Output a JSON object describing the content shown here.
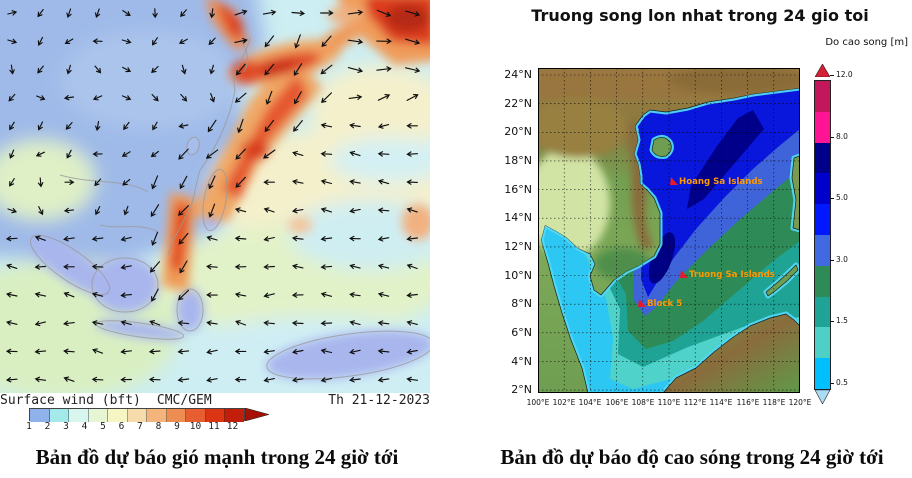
{
  "left_panel": {
    "legend_label": "Surface wind (bft)",
    "model_label": "CMC/GEM",
    "datetime_label": "Th 21-12-2023",
    "caption": "Bản đồ dự báo gió mạnh trong 24 giờ tới",
    "colorbar": {
      "tick_labels": [
        "1",
        "2",
        "3",
        "4",
        "5",
        "6",
        "7",
        "8",
        "9",
        "10",
        "11",
        "12"
      ],
      "cell_colors": [
        "#8fb2ea",
        "#a5eaea",
        "#d9f6ee",
        "#e6f6d5",
        "#f6f6c5",
        "#f6dcab",
        "#f3b57c",
        "#ee8d51",
        "#e75e31",
        "#dc3514",
        "#c31e0b"
      ],
      "arrow_color": "#a61104"
    }
  },
  "right_panel": {
    "title": "Truong song lon nhat trong 24 gio toi",
    "caption": "Bản đồ dự báo độ cao sóng trong 24 giờ tới",
    "colorbar": {
      "label": "Do cao song [m]",
      "tick_labels": [
        "12.0",
        "8.0",
        "5.0",
        "3.0",
        "1.5",
        "0.5"
      ],
      "segment_colors": [
        "#c2185b",
        "#ff1493",
        "#00008b",
        "#0000cd",
        "#0018ff",
        "#4169e1",
        "#2e8b57",
        "#1fa396",
        "#4ed0c6",
        "#00bfff"
      ],
      "arrow_up_color": "#d62035",
      "arrow_down_color": "#abdcf5"
    },
    "lat_ticks": [
      "24°N",
      "22°N",
      "20°N",
      "18°N",
      "16°N",
      "14°N",
      "12°N",
      "10°N",
      "8°N",
      "6°N",
      "4°N",
      "2°N"
    ],
    "lon_ticks": [
      "100°E",
      "102°E",
      "104°E",
      "106°E",
      "108°E",
      "110°E",
      "112°E",
      "114°E",
      "116°E",
      "118°E",
      "120°E"
    ],
    "annotations": [
      {
        "text": "Hoang Sa Islands"
      },
      {
        "text": "Truong Sa Islands"
      },
      {
        "text": "Block 5"
      }
    ],
    "annotation_color": "#ff9900",
    "marker_color": "#e81828"
  }
}
